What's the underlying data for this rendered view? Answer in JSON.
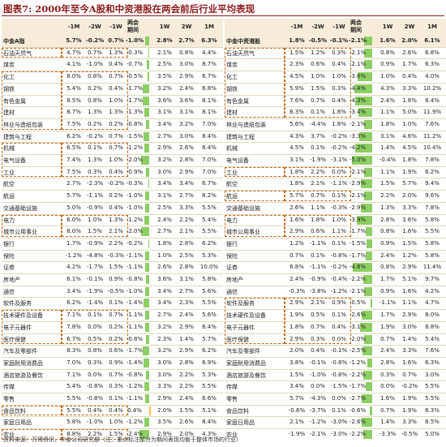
{
  "title": "图表7: 2000年至今A股和中资港股在两会前后行业平均表现",
  "footer": "资料来源：万得资讯，中金公司研究部（注：重点标注部分为期间表现均衡于整体市场的行业）",
  "colors": {
    "positive_bar": "#ffbf3f",
    "negative_bar": "#8ccf62",
    "header_bg": "#f6ecd9",
    "highlight_box": "#c06a12",
    "title": "#8b1a1a"
  },
  "chart_data": [
    {
      "type": "table",
      "title": "中金A指",
      "columns": [
        "中金A指",
        "-1M",
        "-2W",
        "-1W",
        "两会期间",
        "1W",
        "2W",
        "1M"
      ],
      "rows": [
        {
          "name": "中金A指",
          "values": [
            5.7,
            -0.2,
            0.7,
            -1.0,
            2.8,
            2.7,
            6.3
          ]
        },
        {
          "name": "石油天然气",
          "values": [
            4.7,
            0.7,
            1.3,
            -0.3,
            2.1,
            0.8,
            4.4
          ]
        },
        {
          "name": "煤炭",
          "values": [
            4.1,
            -1.0,
            0.4,
            -0.7,
            2.5,
            3.0,
            8.7
          ]
        },
        {
          "name": "化工",
          "values": [
            8.0,
            0.8,
            0.7,
            -0.5,
            3.5,
            2.9,
            6.7
          ]
        },
        {
          "name": "钢铁",
          "values": [
            5.4,
            0.2,
            0.4,
            -1.7,
            3.2,
            2.4,
            6.8
          ]
        },
        {
          "name": "有色金属",
          "values": [
            8.5,
            0.8,
            1.0,
            -1.7,
            3.6,
            3.6,
            8.1
          ]
        },
        {
          "name": "建材",
          "values": [
            8.7,
            1.3,
            1.3,
            -1.3,
            3.1,
            3.1,
            8.1
          ]
        },
        {
          "name": "林业与造纸包装",
          "values": [
            7.5,
            0.2,
            0.2,
            -0.8,
            3.4,
            3.2,
            7.0
          ]
        },
        {
          "name": "建筑与工程",
          "values": [
            6.2,
            -0.2,
            0.7,
            -1.5,
            2.7,
            3.0,
            8.4
          ]
        },
        {
          "name": "机械",
          "values": [
            6.5,
            0.1,
            0.7,
            -1.2,
            2.9,
            2.6,
            6.4
          ]
        },
        {
          "name": "电气设备",
          "values": [
            7.4,
            1.3,
            1.0,
            -2.0,
            3.2,
            2.8,
            7.0
          ]
        },
        {
          "name": "工业",
          "values": [
            7.5,
            0.3,
            0.4,
            -0.9,
            3.0,
            2.9,
            7.0
          ]
        },
        {
          "name": "航空",
          "values": [
            2.7,
            -2.3,
            -0.2,
            -0.3,
            3.4,
            3.4,
            6.7
          ]
        },
        {
          "name": "航运",
          "values": [
            5.7,
            -1.1,
            0.2,
            -1.0,
            3.1,
            2.7,
            8.2
          ]
        },
        {
          "name": "交通基础设施",
          "values": [
            5.0,
            -0.9,
            0.4,
            -1.0,
            2.5,
            3.3,
            5.5
          ]
        },
        {
          "name": "电力",
          "values": [
            6.0,
            1.0,
            1.3,
            -1.2,
            2.4,
            2.2,
            5.4
          ]
        },
        {
          "name": "城市公用事业",
          "values": [
            8.0,
            1.5,
            2.1,
            -2.0,
            2.7,
            2.1,
            5.5
          ]
        },
        {
          "name": "银行",
          "values": [
            1.7,
            -0.9,
            2.2,
            -0.2,
            1.8,
            2.8,
            6.2
          ]
        },
        {
          "name": "保险",
          "values": [
            -1.2,
            -4.8,
            -0.3,
            -1.1,
            1.0,
            2.5,
            5.3
          ]
        },
        {
          "name": "证券",
          "values": [
            4.2,
            -1.7,
            1.5,
            -1.1,
            2.6,
            2.8,
            10.0
          ]
        },
        {
          "name": "房地产",
          "values": [
            6.1,
            -0.1,
            0.9,
            -0.8,
            3.6,
            3.1,
            5.8
          ]
        },
        {
          "name": "通信",
          "values": [
            3.4,
            -1.9,
            -0.5,
            -1.0,
            3.4,
            2.7,
            5.6
          ]
        },
        {
          "name": "软件及服务",
          "values": [
            6.2,
            -1.4,
            0.1,
            -1.4,
            3.4,
            2.3,
            5.5
          ]
        },
        {
          "name": "技术硬件及设备",
          "values": [
            7.1,
            0.1,
            0.7,
            -1.1,
            2.7,
            2.4,
            5.6
          ]
        },
        {
          "name": "电子元器件",
          "values": [
            7.8,
            0.0,
            0.2,
            -1.1,
            3.2,
            2.9,
            6.4
          ]
        },
        {
          "name": "医疗保健",
          "values": [
            6.7,
            0.5,
            0.2,
            -0.8,
            2.3,
            1.4,
            5.7
          ]
        },
        {
          "name": "汽车及零部件",
          "values": [
            8.3,
            0.8,
            0.6,
            -1.7,
            3.2,
            2.9,
            6.2
          ]
        },
        {
          "name": "家庭耐用消费品",
          "values": [
            7.0,
            0.3,
            0.9,
            -1.4,
            3.0,
            2.8,
            6.9
          ]
        },
        {
          "name": "酒店旅游及餐饮",
          "values": [
            7.1,
            0.0,
            0.7,
            -0.8,
            3.0,
            2.2,
            5.3
          ]
        },
        {
          "name": "传媒",
          "values": [
            5.4,
            -0.8,
            0.3,
            -1.2,
            3.3,
            2.2,
            5.5
          ]
        },
        {
          "name": "零售",
          "values": [
            5.5,
            -0.8,
            0.1,
            -1.1,
            2.9,
            2.4,
            6.6
          ]
        },
        {
          "name": "食品饮料",
          "values": [
            5.5,
            0.4,
            0.4,
            0.4,
            2.0,
            1.5,
            5.1
          ]
        },
        {
          "name": "家庭日用品",
          "values": [
            5.8,
            -1.0,
            1.0,
            -1.2,
            3.5,
            2.6,
            8.4
          ]
        },
        {
          "name": "农业",
          "values": [
            8.8,
            2.2,
            1.5,
            -2.4,
            2.9,
            2.0,
            4.3
          ]
        }
      ],
      "highlighted": [
        "石油天然气",
        "化工",
        "钢铁",
        "有色金属",
        "建材",
        "林业与造纸包装",
        "机械",
        "电气设备",
        "工业",
        "电力",
        "城市公用事业",
        "技术硬件及设备",
        "电子元器件",
        "医疗保健",
        "食品饮料",
        "农业"
      ]
    },
    {
      "type": "table",
      "title": "中金中资港股",
      "columns": [
        "中金中资港股",
        "-1M",
        "-2W",
        "-1W",
        "两会期间",
        "1W",
        "2W",
        "1M"
      ],
      "rows": [
        {
          "name": "中金中资港股",
          "values": [
            1.8,
            -0.5,
            -0.1,
            -2.1,
            1.6,
            2.0,
            6.1
          ]
        },
        {
          "name": "石油天然气",
          "values": [
            1.5,
            1.2,
            0.3,
            -2.1,
            0.8,
            2.6,
            6.8
          ]
        },
        {
          "name": "煤炭",
          "values": [
            2.3,
            0.6,
            0.4,
            -2.1,
            0.9,
            1.7,
            6.3
          ]
        },
        {
          "name": "化工",
          "values": [
            4.5,
            1.0,
            1.0,
            -3.6,
            1.0,
            0.4,
            4.0
          ]
        },
        {
          "name": "钢铁",
          "values": [
            5.9,
            1.5,
            0.3,
            -4.4,
            4.3,
            3.3,
            10.2
          ]
        },
        {
          "name": "有色金属",
          "values": [
            7.6,
            0.7,
            0.4,
            -4.3,
            2.4,
            1.8,
            8.4
          ]
        },
        {
          "name": "建材",
          "values": [
            6.3,
            0.1,
            1.8,
            -3.4,
            1.1,
            5.0,
            11.9
          ]
        },
        {
          "name": "林业与造纸包装",
          "values": [
            5.6,
            -4.4,
            1.8,
            -2.1,
            1.8,
            1.0,
            7.6
          ]
        },
        {
          "name": "建筑与工程",
          "values": [
            4.3,
            3.7,
            -0.2,
            -3.3,
            3.1,
            4.6,
            11.2
          ]
        },
        {
          "name": "机械",
          "values": [
            4.5,
            0.1,
            -0.2,
            -4.2,
            1.4,
            4.5,
            10.4
          ]
        },
        {
          "name": "电气设备",
          "values": [
            3.1,
            -1.9,
            -3.1,
            -5.0,
            -0.4,
            1.8,
            7.8
          ]
        },
        {
          "name": "工业",
          "values": [
            1.8,
            2.2,
            0.0,
            -2.1,
            1.1,
            1.9,
            6.2
          ]
        },
        {
          "name": "航空",
          "values": [
            1.8,
            2.1,
            -1.1,
            -2.9,
            1.5,
            5.7,
            9.4
          ]
        },
        {
          "name": "航运",
          "values": [
            5.7,
            0.7,
            0.1,
            -2.1,
            2.2,
            2.0,
            9.6
          ]
        },
        {
          "name": "交通基础设施",
          "values": [
            2.6,
            1.1,
            -0.3,
            -2.9,
            1.3,
            3.3,
            7.8
          ]
        },
        {
          "name": "电力",
          "values": [
            1.6,
            1.8,
            1.0,
            -3.9,
            2.8,
            3.6,
            5.8
          ]
        },
        {
          "name": "城市公用事业",
          "values": [
            2.9,
            0.6,
            1.1,
            -1.7,
            0.8,
            1.6,
            5.5
          ]
        },
        {
          "name": "银行",
          "values": [
            1.2,
            -1.1,
            0.1,
            -1.5,
            0.9,
            1.5,
            5.8
          ]
        },
        {
          "name": "保险",
          "values": [
            0.7,
            0.1,
            -0.8,
            -1.7,
            2.4,
            1.2,
            5.8
          ]
        },
        {
          "name": "证券",
          "values": [
            6.8,
            -1.1,
            -0.2,
            -4.8,
            0.8,
            2.9,
            11.4
          ]
        },
        {
          "name": "房地产",
          "values": [
            2.4,
            -0.9,
            -0.4,
            -2.2,
            1.7,
            5.1,
            9.7
          ]
        },
        {
          "name": "通信",
          "values": [
            -0.3,
            -3.8,
            -1.2,
            -2.1,
            0.9,
            1.6,
            4.2
          ]
        },
        {
          "name": "软件及服务",
          "values": [
            2.9,
            2.1,
            0.9,
            -0.5,
            -1.1,
            1.1,
            4.7
          ]
        },
        {
          "name": "技术硬件及设备",
          "values": [
            1.9,
            0.5,
            0.1,
            -2.6,
            1.7,
            2.9,
            8.0
          ]
        },
        {
          "name": "电子元器件",
          "values": [
            1.8,
            0.7,
            0.4,
            -3.1,
            1.9,
            3.0,
            8.8
          ]
        },
        {
          "name": "医疗保健",
          "values": [
            2.9,
            0.3,
            0.0,
            -2.0,
            0.7,
            1.4,
            5.4
          ]
        },
        {
          "name": "汽车及零部件",
          "values": [
            2.0,
            0.4,
            -0.1,
            -2.5,
            2.4,
            3.3,
            7.6
          ]
        },
        {
          "name": "家庭耐用消费品",
          "values": [
            3.8,
            -0.1,
            -0.8,
            -1.2,
            2.8,
            1.6,
            6.3
          ]
        },
        {
          "name": "酒店旅游及餐饮",
          "values": [
            1.5,
            -1.0,
            -0.8,
            -2.2,
            0.3,
            0.7,
            3.0
          ]
        },
        {
          "name": "传媒",
          "values": [
            3.4,
            0.0,
            -1.5,
            -1.7,
            0.0,
            -0.2,
            5.5
          ]
        },
        {
          "name": "零售",
          "values": [
            5.7,
            -4.3,
            0.0,
            -2.7,
            1.6,
            1.9,
            5.5
          ]
        },
        {
          "name": "食品饮料",
          "values": [
            -0.6,
            -3.7,
            0.1,
            -0.6,
            0.7,
            1.9,
            6.3
          ]
        },
        {
          "name": "家庭日用品",
          "values": [
            2.1,
            -1.2,
            -3.0,
            -2.6,
            1.4,
            3.3,
            8.5
          ]
        },
        {
          "name": "农业",
          "values": [
            -1.9,
            -2.1,
            -3.0,
            -2.2,
            -3.3,
            -0.5,
            5.0
          ]
        }
      ],
      "highlighted": [
        "石油天然气",
        "煤炭",
        "化工",
        "钢铁",
        "有色金属",
        "建材",
        "工业",
        "航运",
        "电力",
        "城市公用事业",
        "软件及服务",
        "技术硬件及设备",
        "电子元器件",
        "医疗保健"
      ]
    }
  ]
}
